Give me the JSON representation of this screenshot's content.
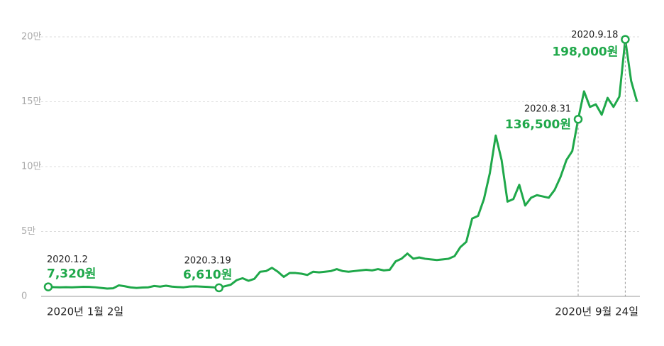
{
  "chart_data": {
    "type": "line",
    "categories": [
      "2020년 1월 2일",
      null,
      null,
      null,
      null,
      null,
      null,
      null,
      null,
      null,
      null,
      null,
      null,
      null,
      null,
      null,
      null,
      null,
      null,
      null,
      null,
      null,
      null,
      null,
      null,
      null,
      null,
      null,
      null,
      null,
      null,
      null,
      null,
      null,
      null,
      null,
      null,
      null,
      null,
      null,
      null,
      null,
      null,
      null,
      null,
      null,
      null,
      null,
      null,
      null,
      null,
      null,
      null,
      null,
      null,
      null,
      null,
      null,
      null,
      null,
      null,
      null,
      null,
      null,
      null,
      null,
      null,
      null,
      null,
      null,
      null,
      null,
      null,
      null,
      null,
      null,
      null,
      null,
      null,
      null,
      null,
      null,
      null,
      null,
      null,
      null,
      null,
      null,
      null,
      null,
      null,
      null,
      null,
      null,
      null,
      null,
      null,
      null,
      null,
      null,
      "2020년 9월 24일"
    ],
    "series": [
      {
        "color": "#1fa84a",
        "values": [
          7320,
          7100,
          7000,
          7100,
          7000,
          7200,
          7400,
          7300,
          7000,
          6500,
          6000,
          6200,
          8500,
          7800,
          6900,
          6500,
          6800,
          7000,
          8000,
          7500,
          8200,
          7500,
          7200,
          7000,
          7600,
          7700,
          7500,
          7300,
          7000,
          6610,
          7800,
          9000,
          12500,
          14000,
          12000,
          13500,
          19000,
          19500,
          22000,
          19000,
          15000,
          18000,
          18000,
          17500,
          16500,
          19000,
          18500,
          19000,
          19500,
          21000,
          19500,
          19000,
          19500,
          20000,
          20500,
          20000,
          21000,
          20000,
          20500,
          27000,
          29000,
          33000,
          29000,
          30000,
          29000,
          28500,
          28000,
          28500,
          29000,
          31000,
          38000,
          42000,
          60000,
          62000,
          75000,
          95000,
          124000,
          105000,
          73000,
          75000,
          86000,
          70000,
          76000,
          78000,
          77000,
          76000,
          82000,
          92000,
          105000,
          112000,
          136500,
          158000,
          146000,
          148000,
          140000,
          153000,
          146000,
          154000,
          198000,
          166000,
          150000
        ],
        "point_dates": {
          "0": "2020.1.2",
          "29": "2020.3.19",
          "90": "2020.8.31",
          "98": "2020.9.18"
        },
        "value_labels": {
          "0": "7,320원",
          "29": "6,610원",
          "90": "136,500원",
          "98": "198,000원"
        }
      }
    ],
    "ylim": [
      0,
      200000
    ],
    "yticks": [
      0,
      {
        "value": 50000,
        "label": "5만"
      },
      {
        "value": 100000,
        "label": "10만"
      },
      {
        "value": 150000,
        "label": "15만"
      },
      {
        "value": 200000,
        "label": "20만"
      }
    ],
    "grid": true
  }
}
